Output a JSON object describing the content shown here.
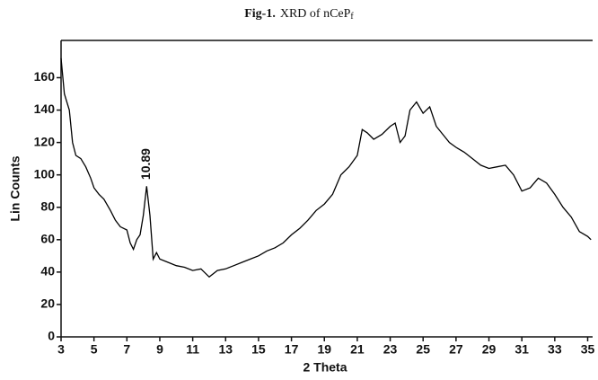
{
  "chart_data": {
    "type": "line",
    "title_label": "Fig-1.",
    "title": "XRD of nCeP",
    "title_subscript": "f",
    "xlabel": "2 Theta",
    "ylabel": "Lin Counts",
    "x": [
      3.0,
      3.2,
      3.5,
      3.7,
      3.9,
      4.2,
      4.5,
      4.8,
      5.0,
      5.3,
      5.6,
      6.0,
      6.3,
      6.6,
      7.0,
      7.2,
      7.4,
      7.6,
      7.8,
      8.0,
      8.2,
      8.4,
      8.6,
      8.8,
      9.0,
      9.5,
      10.0,
      10.5,
      11.0,
      11.5,
      12.0,
      12.5,
      13.0,
      13.5,
      14.0,
      14.5,
      15.0,
      15.5,
      16.0,
      16.5,
      17.0,
      17.5,
      18.0,
      18.5,
      19.0,
      19.5,
      20.0,
      20.5,
      21.0,
      21.3,
      21.6,
      22.0,
      22.5,
      23.0,
      23.3,
      23.6,
      23.9,
      24.2,
      24.6,
      25.0,
      25.4,
      25.8,
      26.2,
      26.6,
      27.0,
      27.5,
      28.0,
      28.5,
      29.0,
      29.5,
      30.0,
      30.5,
      31.0,
      31.5,
      32.0,
      32.5,
      33.0,
      33.5,
      34.0,
      34.5,
      35.0,
      35.2
    ],
    "values": [
      172,
      150,
      140,
      120,
      112,
      110,
      105,
      98,
      92,
      88,
      85,
      78,
      72,
      68,
      66,
      58,
      54,
      60,
      63,
      75,
      93,
      75,
      48,
      52,
      48,
      46,
      44,
      43,
      41,
      42,
      37,
      41,
      42,
      44,
      46,
      48,
      50,
      53,
      55,
      58,
      63,
      67,
      72,
      78,
      82,
      88,
      100,
      105,
      112,
      128,
      126,
      122,
      125,
      130,
      132,
      120,
      124,
      140,
      145,
      138,
      142,
      130,
      125,
      120,
      117,
      114,
      110,
      106,
      104,
      105,
      106,
      100,
      90,
      92,
      98,
      95,
      88,
      80,
      74,
      65,
      62,
      60
    ],
    "color": "#000000",
    "xlim": [
      3,
      35.3
    ],
    "xticks": [
      3,
      5,
      7,
      9,
      11,
      13,
      15,
      17,
      19,
      21,
      23,
      25,
      27,
      29,
      31,
      33,
      35
    ],
    "ylim": [
      0,
      183
    ],
    "yticks": [
      0,
      20,
      40,
      60,
      80,
      100,
      120,
      140,
      160
    ],
    "grid": false,
    "annotations": [
      {
        "text": "10.89",
        "x": 8.2,
        "y": 97
      }
    ]
  }
}
